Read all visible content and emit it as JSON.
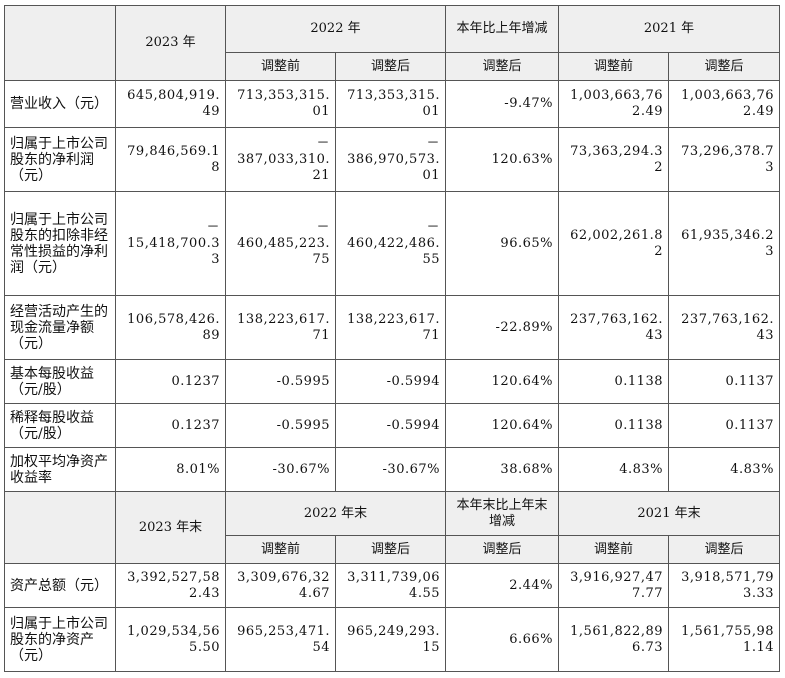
{
  "header1": {
    "year_2023": "2023 年",
    "year_2022": "2022 年",
    "change": "本年比上年增减",
    "year_2021": "2021 年",
    "before": "调整前",
    "after": "调整后"
  },
  "rows1": [
    {
      "label": "营业收入（元）",
      "v2023": "645,804,919.\n49",
      "v2022_before": "713,353,315.\n01",
      "v2022_after": "713,353,315.\n01",
      "change": "-9.47%",
      "v2021_before": "1,003,663,76\n2.49",
      "v2021_after": "1,003,663,76\n2.49"
    },
    {
      "label": "归属于上市公司股东的净利润（元）",
      "v2023": "79,846,569.1\n8",
      "v2022_before": "－\n387,033,310.\n21",
      "v2022_after": "－\n386,970,573.\n01",
      "change": "120.63%",
      "v2021_before": "73,363,294.3\n2",
      "v2021_after": "73,296,378.7\n3"
    },
    {
      "label": "归属于上市公司股东的扣除非经常性损益的净利润（元）",
      "v2023": "－\n15,418,700.3\n3",
      "v2022_before": "－\n460,485,223.\n75",
      "v2022_after": "－\n460,422,486.\n55",
      "change": "96.65%",
      "v2021_before": "62,002,261.8\n2",
      "v2021_after": "61,935,346.2\n3"
    },
    {
      "label": "经营活动产生的现金流量净额（元）",
      "v2023": "106,578,426.\n89",
      "v2022_before": "138,223,617.\n71",
      "v2022_after": "138,223,617.\n71",
      "change": "-22.89%",
      "v2021_before": "237,763,162.\n43",
      "v2021_after": "237,763,162.\n43"
    },
    {
      "label": "基本每股收益（元/股）",
      "v2023": "0.1237",
      "v2022_before": "-0.5995",
      "v2022_after": "-0.5994",
      "change": "120.64%",
      "v2021_before": "0.1138",
      "v2021_after": "0.1137"
    },
    {
      "label": "稀释每股收益（元/股）",
      "v2023": "0.1237",
      "v2022_before": "-0.5995",
      "v2022_after": "-0.5994",
      "change": "120.64%",
      "v2021_before": "0.1138",
      "v2021_after": "0.1137"
    },
    {
      "label": "加权平均净资产收益率",
      "v2023": "8.01%",
      "v2022_before": "-30.67%",
      "v2022_after": "-30.67%",
      "change": "38.68%",
      "v2021_before": "4.83%",
      "v2021_after": "4.83%"
    }
  ],
  "header2": {
    "year_2023": "2023 年末",
    "year_2022": "2022 年末",
    "change": "本年末比上年末增减",
    "year_2021": "2021 年末",
    "before": "调整前",
    "after": "调整后"
  },
  "rows2": [
    {
      "label": "资产总额（元）",
      "v2023": "3,392,527,58\n2.43",
      "v2022_before": "3,309,676,32\n4.67",
      "v2022_after": "3,311,739,06\n4.55",
      "change": "2.44%",
      "v2021_before": "3,916,927,47\n7.77",
      "v2021_after": "3,918,571,79\n3.33"
    },
    {
      "label": "归属于上市公司股东的净资产（元）",
      "v2023": "1,029,534,56\n5.50",
      "v2022_before": "965,253,471.\n54",
      "v2022_after": "965,249,293.\n15",
      "change": "6.66%",
      "v2021_before": "1,561,822,89\n6.73",
      "v2021_after": "1,561,755,98\n1.14"
    }
  ]
}
